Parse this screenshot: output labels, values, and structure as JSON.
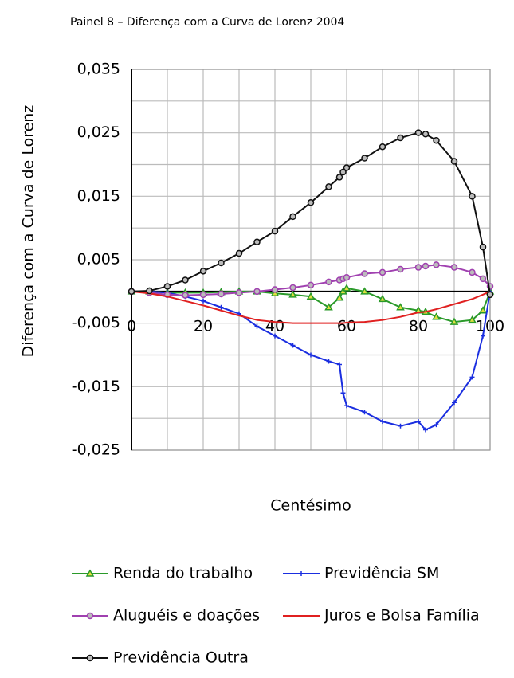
{
  "chart_data": {
    "type": "line",
    "title": "Painel 8 – Diferença com a Curva de Lorenz 2004",
    "xlabel": "Centésimo",
    "ylabel": "Diferença com a Curva de Lorenz",
    "x": [
      0,
      5,
      10,
      15,
      20,
      25,
      30,
      35,
      40,
      45,
      50,
      55,
      58,
      59,
      60,
      65,
      70,
      75,
      80,
      82,
      85,
      90,
      95,
      98,
      100
    ],
    "series": [
      {
        "name": "Renda do trabalho",
        "color": "#2a9a2a",
        "marker": "triangle",
        "values": [
          0,
          0,
          -0.0002,
          -0.0002,
          -0.0002,
          -0.0001,
          0,
          0,
          -0.0003,
          -0.0005,
          -0.0008,
          -0.0025,
          -0.001,
          0,
          0.0005,
          0,
          -0.0012,
          -0.0025,
          -0.003,
          -0.0032,
          -0.004,
          -0.0048,
          -0.0045,
          -0.003,
          0
        ]
      },
      {
        "name": "Previdência SM",
        "color": "#1a2ee0",
        "marker": "plus",
        "values": [
          0,
          0,
          -0.0002,
          -0.0008,
          -0.0015,
          -0.0025,
          -0.0035,
          -0.0055,
          -0.007,
          -0.0085,
          -0.01,
          -0.011,
          -0.0115,
          -0.016,
          -0.018,
          -0.019,
          -0.0205,
          -0.0212,
          -0.0205,
          -0.0218,
          -0.021,
          -0.0175,
          -0.0135,
          -0.007,
          0
        ]
      },
      {
        "name": "Aluguéis e doações",
        "color": "#a040b0",
        "marker": "circle",
        "values": [
          0,
          -0.0002,
          -0.0005,
          -0.0006,
          -0.0005,
          -0.0004,
          -0.0002,
          0,
          0.0003,
          0.0006,
          0.001,
          0.0015,
          0.0018,
          0.002,
          0.0022,
          0.0028,
          0.003,
          0.0035,
          0.0038,
          0.004,
          0.0042,
          0.0038,
          0.003,
          0.002,
          0.0008
        ]
      },
      {
        "name": "Juros e Bolsa Família",
        "color": "#e02020",
        "marker": "none",
        "values": [
          0,
          -0.0003,
          -0.0008,
          -0.0015,
          -0.0022,
          -0.003,
          -0.0038,
          -0.0045,
          -0.0048,
          -0.005,
          -0.005,
          -0.005,
          -0.005,
          -0.005,
          -0.0049,
          -0.0048,
          -0.0045,
          -0.004,
          -0.0033,
          -0.0032,
          -0.0028,
          -0.002,
          -0.0012,
          -0.0005,
          0
        ]
      },
      {
        "name": "Previdência Outra",
        "color": "#111111",
        "marker": "circle",
        "values": [
          0,
          0.0001,
          0.0008,
          0.0018,
          0.0032,
          0.0045,
          0.006,
          0.0078,
          0.0095,
          0.0118,
          0.014,
          0.0165,
          0.018,
          0.0188,
          0.0195,
          0.021,
          0.0228,
          0.0242,
          0.025,
          0.0248,
          0.0238,
          0.0205,
          0.015,
          0.007,
          -0.0005
        ]
      }
    ],
    "xlim": [
      0,
      100
    ],
    "xticks": [
      0,
      20,
      40,
      60,
      80,
      100
    ],
    "xminor": [
      10,
      30,
      50,
      70,
      90
    ],
    "ylim": [
      -0.025,
      0.035
    ],
    "yticks": [
      {
        "value": 0.035,
        "label": "0,035"
      },
      {
        "value": 0.025,
        "label": "0,025"
      },
      {
        "value": 0.015,
        "label": "0,015"
      },
      {
        "value": 0.005,
        "label": "0,005"
      },
      {
        "value": -0.005,
        "label": "-0,005"
      },
      {
        "value": -0.015,
        "label": "-0,015"
      },
      {
        "value": -0.025,
        "label": "-0,025"
      }
    ],
    "yminor": [
      0.03,
      0.02,
      0.01,
      0,
      -0.01,
      -0.02
    ],
    "grid": true
  }
}
